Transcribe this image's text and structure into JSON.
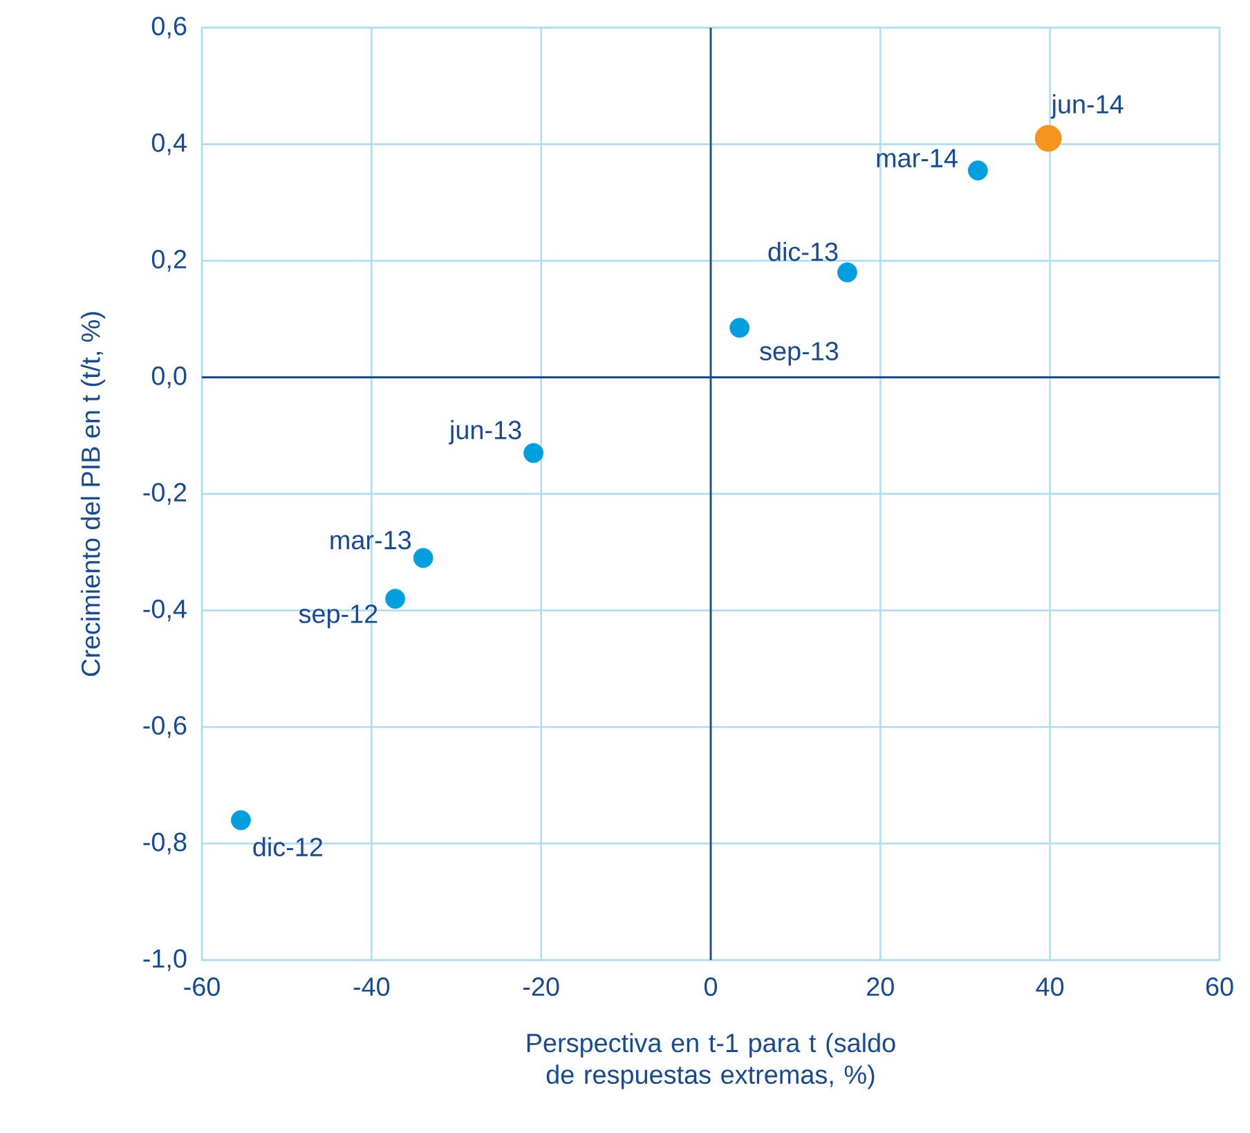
{
  "chart_data": {
    "type": "scatter",
    "xlabel": "Perspectiva en t-1 para t (saldo de respuestas extremas, %)",
    "ylabel": "Crecimiento del PIB en t (t/t, %)",
    "series": [
      {
        "color": "#00a0e0",
        "x": [
          -55.4,
          -37.2,
          -33.9,
          -20.9,
          3.4,
          16.1,
          31.5
        ],
        "values": [
          -0.76,
          -0.38,
          -0.31,
          -0.13,
          0.085,
          0.18,
          0.355
        ]
      },
      {
        "color": "#f7941d",
        "x": [
          39.8
        ],
        "values": [
          0.41
        ]
      }
    ],
    "annotations": [
      {
        "text": "dic-12",
        "x": -55.4,
        "y": -0.76
      },
      {
        "text": "sep-12",
        "x": -37.2,
        "y": -0.38
      },
      {
        "text": "mar-13",
        "x": -33.9,
        "y": -0.31
      },
      {
        "text": "jun-13",
        "x": -20.9,
        "y": -0.13
      },
      {
        "text": "sep-13",
        "x": 3.4,
        "y": 0.085
      },
      {
        "text": "dic-13",
        "x": 16.1,
        "y": 0.18
      },
      {
        "text": "mar-14",
        "x": 31.5,
        "y": 0.355
      },
      {
        "text": "jun-14",
        "x": 39.8,
        "y": 0.41
      }
    ],
    "xlim": [
      -60,
      60
    ],
    "xticks": [
      -60,
      -40,
      -20,
      0,
      20,
      40,
      60
    ],
    "ylim": [
      -1.0,
      0.6
    ],
    "yticks": [
      {
        "value": -1.0,
        "label": "-1,0"
      },
      {
        "value": -0.8,
        "label": "-0,8"
      },
      {
        "value": -0.6,
        "label": "-0,6"
      },
      {
        "value": -0.4,
        "label": "-0,4"
      },
      {
        "value": -0.2,
        "label": "-0,2"
      },
      {
        "value": 0.0,
        "label": "0,0"
      },
      {
        "value": 0.2,
        "label": "0,2"
      },
      {
        "value": 0.4,
        "label": "0,4"
      },
      {
        "value": 0.6,
        "label": "0,6"
      }
    ],
    "grid": true
  }
}
